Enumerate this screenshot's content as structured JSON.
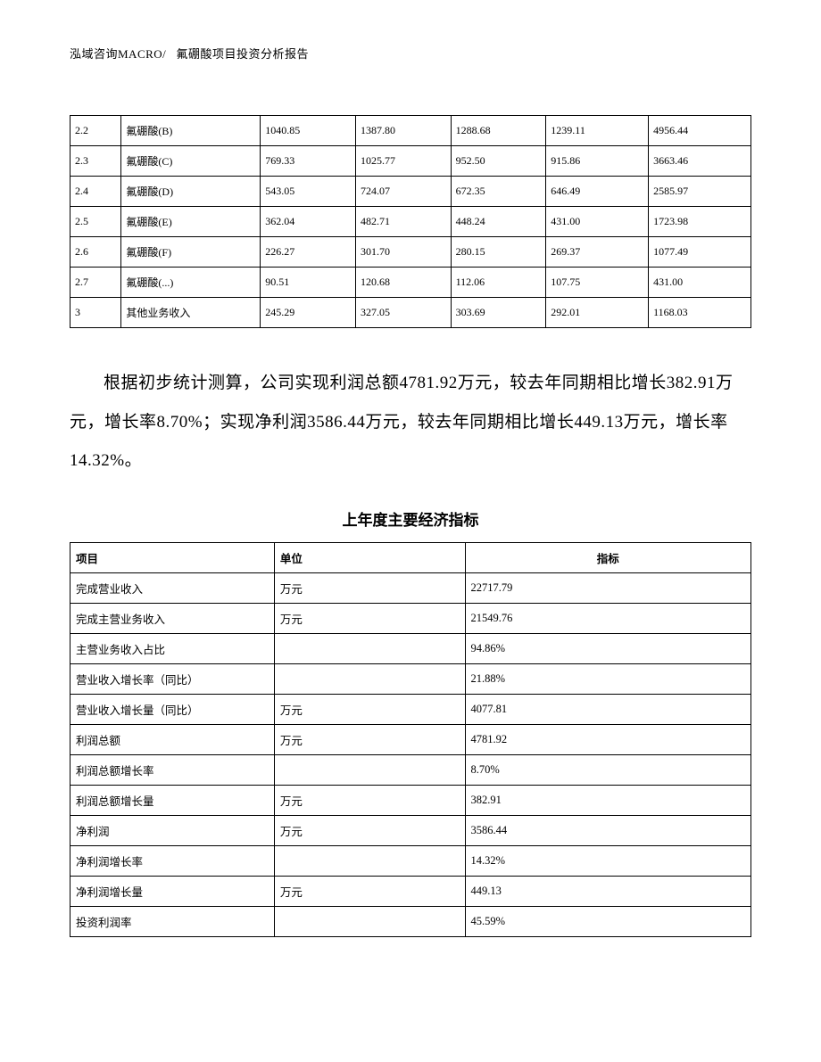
{
  "header": {
    "company": "泓域咨询MACRO/",
    "title": "氟硼酸项目投资分析报告"
  },
  "table1": {
    "columns": [
      "id",
      "name",
      "v1",
      "v2",
      "v3",
      "v4",
      "v5"
    ],
    "column_widths_pct": [
      7,
      19,
      13,
      13,
      13,
      14,
      14
    ],
    "border_color": "#000000",
    "font_size_pt": 9,
    "background_color": "#ffffff",
    "rows": [
      {
        "id": "2.2",
        "name": "氟硼酸(B)",
        "v1": "1040.85",
        "v2": "1387.80",
        "v3": "1288.68",
        "v4": "1239.11",
        "v5": "4956.44"
      },
      {
        "id": "2.3",
        "name": "氟硼酸(C)",
        "v1": "769.33",
        "v2": "1025.77",
        "v3": "952.50",
        "v4": "915.86",
        "v5": "3663.46"
      },
      {
        "id": "2.4",
        "name": "氟硼酸(D)",
        "v1": "543.05",
        "v2": "724.07",
        "v3": "672.35",
        "v4": "646.49",
        "v5": "2585.97"
      },
      {
        "id": "2.5",
        "name": "氟硼酸(E)",
        "v1": "362.04",
        "v2": "482.71",
        "v3": "448.24",
        "v4": "431.00",
        "v5": "1723.98"
      },
      {
        "id": "2.6",
        "name": "氟硼酸(F)",
        "v1": "226.27",
        "v2": "301.70",
        "v3": "280.15",
        "v4": "269.37",
        "v5": "1077.49"
      },
      {
        "id": "2.7",
        "name": "氟硼酸(...)",
        "v1": "90.51",
        "v2": "120.68",
        "v3": "112.06",
        "v4": "107.75",
        "v5": "431.00"
      },
      {
        "id": "3",
        "name": "其他业务收入",
        "v1": "245.29",
        "v2": "327.05",
        "v3": "303.69",
        "v4": "292.01",
        "v5": "1168.03"
      }
    ]
  },
  "paragraph": {
    "text": "根据初步统计测算，公司实现利润总额4781.92万元，较去年同期相比增长382.91万元，增长率8.70%；实现净利润3586.44万元，较去年同期相比增长449.13万元，增长率14.32%。",
    "font_size_pt": 14,
    "line_height": 2.3,
    "text_indent_em": 2
  },
  "table2": {
    "title": "上年度主要经济指标",
    "title_font_size_pt": 13,
    "title_font_weight": "bold",
    "border_color": "#000000",
    "font_size_pt": 9.5,
    "background_color": "#ffffff",
    "headers": {
      "item": "项目",
      "unit": "单位",
      "value": "指标"
    },
    "column_widths_pct": [
      30,
      28,
      42
    ],
    "header_value_align": "center",
    "rows": [
      {
        "item": "完成营业收入",
        "unit": "万元",
        "value": "22717.79"
      },
      {
        "item": "完成主营业务收入",
        "unit": "万元",
        "value": "21549.76"
      },
      {
        "item": "主营业务收入占比",
        "unit": "",
        "value": "94.86%"
      },
      {
        "item": "营业收入增长率（同比）",
        "unit": "",
        "value": "21.88%"
      },
      {
        "item": "营业收入增长量（同比）",
        "unit": "万元",
        "value": "4077.81"
      },
      {
        "item": "利润总额",
        "unit": "万元",
        "value": "4781.92"
      },
      {
        "item": "利润总额增长率",
        "unit": "",
        "value": "8.70%"
      },
      {
        "item": "利润总额增长量",
        "unit": "万元",
        "value": "382.91"
      },
      {
        "item": "净利润",
        "unit": "万元",
        "value": "3586.44"
      },
      {
        "item": "净利润增长率",
        "unit": "",
        "value": "14.32%"
      },
      {
        "item": "净利润增长量",
        "unit": "万元",
        "value": "449.13"
      },
      {
        "item": "投资利润率",
        "unit": "",
        "value": "45.59%"
      }
    ]
  }
}
